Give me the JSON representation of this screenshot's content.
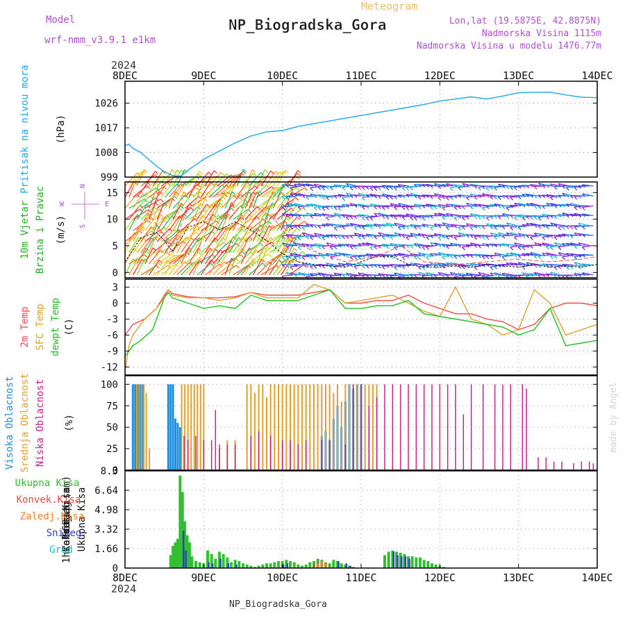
{
  "header": {
    "model_label": "Model",
    "model_name": "wrf-nmm_v3.9.1 e1km",
    "meteogram_label": "Meteogram",
    "station": "NP_Biogradska_Gora",
    "lonlat": "Lon,lat (19.5875E, 42.8875N)",
    "elevation": "Nadmorska Visina 1115m",
    "model_elevation": "Nadmorska Visina u modelu 1476.77m",
    "year": "2024",
    "footer_station": "NP_Biogradska_Gora",
    "credit": "made by Angel"
  },
  "colors": {
    "pressure": "#1ea6e6",
    "temp2m": "#f04a4a",
    "sfctemp": "#e0a030",
    "dewpt": "#20c020",
    "high_cloud": "#1e90e0",
    "mid_cloud": "#e0a030",
    "low_cloud": "#c8208c",
    "total_precip": "#30c030",
    "snow": "#3040c8",
    "graupel": "#20c0c0",
    "header_purple": "#b050d0",
    "header_gold": "#e8c070"
  },
  "chart_data": [
    {
      "type": "line",
      "panel": "pressure",
      "ylabel": [
        "Pritisak na nivou mora",
        "(hPa)"
      ],
      "x_ticks": [
        "8DEC",
        "9DEC",
        "10DEC",
        "11DEC",
        "12DEC",
        "13DEC",
        "14DEC"
      ],
      "y_ticks": [
        999,
        1008,
        1017,
        1026
      ],
      "ylim": [
        999,
        1034
      ],
      "xlim_days": [
        0,
        6
      ],
      "grid": true,
      "series": [
        {
          "x": [
            0,
            0.05,
            0.1,
            0.2,
            0.3,
            0.4,
            0.5,
            0.6,
            0.7,
            0.75,
            0.8,
            0.9,
            1.0,
            1.2,
            1.4,
            1.6,
            1.8,
            2.0,
            2.2,
            2.4,
            2.6,
            2.8,
            3.0,
            3.2,
            3.4,
            3.6,
            3.8,
            4.0,
            4.2,
            4.4,
            4.6,
            4.8,
            5.0,
            5.2,
            5.4,
            5.6,
            5.8,
            6.0
          ],
          "y": [
            1010.5,
            1011,
            1009.5,
            1008,
            1005.5,
            1003,
            1001,
            999.6,
            999.3,
            1000.3,
            1001.5,
            1003.5,
            1005.5,
            1008.5,
            1011.5,
            1014,
            1015.5,
            1016,
            1017.5,
            1018.5,
            1019.5,
            1020.5,
            1021.5,
            1022.5,
            1023.5,
            1024.5,
            1025.5,
            1026.8,
            1027.5,
            1028.3,
            1027.5,
            1028.6,
            1029.8,
            1030,
            1030,
            1029,
            1028.2,
            1028
          ]
        }
      ]
    },
    {
      "type": "line",
      "panel": "wind",
      "ylabel": [
        "10m Vjetar",
        "Brzina i Pravac",
        "(m/s)"
      ],
      "direction_key": [
        "N",
        "W",
        "E",
        "S"
      ],
      "y_ticks": [
        0,
        5,
        10,
        15
      ],
      "ylim": [
        -1,
        17
      ],
      "grid": true,
      "series": [
        {
          "name": "speed",
          "x": [
            0,
            0.2,
            0.4,
            0.5,
            0.6,
            0.7,
            0.8,
            1.0,
            1.2,
            1.4,
            1.6,
            1.8,
            2.0,
            2.2,
            2.4,
            2.6,
            2.8,
            3.0,
            3.2,
            3.4,
            3.6,
            3.8,
            4.0,
            4.2,
            4.4,
            4.6,
            4.8,
            5.0,
            5.2,
            5.4,
            5.6,
            5.8,
            6.0
          ],
          "y": [
            2,
            6.5,
            7.5,
            6,
            4,
            6,
            8.5,
            9.5,
            8,
            9.5,
            8,
            6,
            3.5,
            2,
            1.5,
            1.2,
            1,
            2,
            3,
            3,
            1.5,
            1,
            1,
            1.2,
            1,
            1.5,
            1.2,
            1,
            1.5,
            1,
            1.2,
            1,
            1.5
          ]
        },
        {
          "name": "gust",
          "x": [
            0,
            0.3,
            0.6,
            0.8,
            1.0,
            1.3,
            1.6,
            1.9,
            2.1,
            2.4,
            2.8,
            3.2,
            3.5,
            3.8,
            4.2,
            4.6,
            5.0,
            5.4,
            5.8,
            6.0
          ],
          "y": [
            5,
            11,
            5,
            12,
            14,
            15,
            13,
            10,
            6,
            4,
            2,
            3,
            5,
            2,
            1.5,
            2,
            2.5,
            2,
            2.5,
            3
          ]
        }
      ]
    },
    {
      "type": "line",
      "panel": "temperature",
      "ylabel": [
        "2m Temp",
        "SFC Temp",
        "dewpt Temp",
        "(C)"
      ],
      "y_ticks": [
        3,
        0,
        -3,
        -6,
        -9,
        -12
      ],
      "ylim": [
        -13.5,
        4.5
      ],
      "grid": true,
      "series": [
        {
          "name": "2m Temp",
          "x": [
            0,
            0.1,
            0.25,
            0.4,
            0.5,
            0.55,
            0.6,
            0.8,
            1.0,
            1.2,
            1.4,
            1.6,
            1.8,
            2.0,
            2.2,
            2.4,
            2.6,
            2.8,
            3.0,
            3.2,
            3.4,
            3.6,
            3.8,
            4.0,
            4.2,
            4.4,
            4.6,
            4.8,
            5.0,
            5.2,
            5.4,
            5.6,
            5.8,
            6.0
          ],
          "y": [
            -6,
            -4,
            -3,
            -1,
            1.5,
            2.5,
            1.8,
            1.2,
            1,
            1,
            1.2,
            2,
            1.5,
            1.5,
            1.5,
            2,
            2.5,
            0,
            0,
            0.5,
            0.5,
            1.5,
            0,
            -1,
            -2,
            -2,
            -3,
            -3.5,
            -5,
            -4,
            -1,
            0,
            0,
            -0.5
          ]
        },
        {
          "name": "SFC Temp",
          "x": [
            0,
            0.05,
            0.1,
            0.25,
            0.4,
            0.5,
            0.55,
            0.6,
            0.8,
            1.0,
            1.2,
            1.4,
            1.6,
            1.8,
            2.0,
            2.2,
            2.4,
            2.6,
            2.8,
            3.0,
            3.2,
            3.4,
            3.6,
            3.8,
            4.0,
            4.2,
            4.4,
            4.6,
            4.8,
            5.0,
            5.2,
            5.4,
            5.6,
            5.8,
            6.0
          ],
          "y": [
            -12.8,
            -8,
            -6,
            -3,
            -1,
            1,
            2.5,
            1.5,
            1,
            1,
            0.5,
            1,
            2,
            1,
            1,
            1,
            3.5,
            2.5,
            0,
            0.5,
            1,
            1.5,
            0,
            -1.5,
            -2.5,
            3,
            -3,
            -4,
            -6,
            -5,
            2.5,
            0,
            -6,
            -5,
            -4
          ]
        },
        {
          "name": "dewpt Temp",
          "x": [
            0,
            0.1,
            0.2,
            0.35,
            0.5,
            0.55,
            0.6,
            0.8,
            1.0,
            1.2,
            1.4,
            1.6,
            1.8,
            2.0,
            2.2,
            2.4,
            2.6,
            2.8,
            3.0,
            3.2,
            3.4,
            3.6,
            3.8,
            4.0,
            4.2,
            4.4,
            4.6,
            4.8,
            5.0,
            5.2,
            5.4,
            5.6,
            5.8,
            6.0
          ],
          "y": [
            -10,
            -8,
            -7,
            -5,
            1,
            2,
            1,
            0,
            -1,
            -0.5,
            -1,
            1.5,
            0.5,
            0.5,
            0.5,
            1.5,
            2.5,
            -1,
            -1,
            -0.5,
            -0.5,
            0.5,
            -2,
            -2.5,
            -3,
            -3.5,
            -4,
            -4.5,
            -6,
            -5,
            -1,
            -8,
            -7.5,
            -7
          ]
        }
      ]
    },
    {
      "type": "bar",
      "panel": "clouds",
      "ylabel": [
        "Visoka Oblacnost",
        "Srednja Oblacnost",
        "Niska Oblacnost",
        "(%)"
      ],
      "y_ticks": [
        0,
        25,
        50,
        75,
        100
      ],
      "ylim": [
        0,
        110
      ],
      "grid": true,
      "series": [
        {
          "name": "Visoka Oblacnost",
          "x": [
            0.1,
            0.13,
            0.16,
            0.19,
            0.22,
            0.55,
            0.58,
            0.61,
            0.64,
            0.67,
            0.7,
            2.5,
            2.55,
            2.6,
            2.65,
            2.7,
            2.75,
            2.8,
            2.85,
            2.9,
            2.95,
            3.0
          ],
          "values": [
            100,
            100,
            100,
            100,
            100,
            100,
            100,
            100,
            60,
            55,
            50,
            40,
            45,
            35,
            60,
            75,
            50,
            80,
            100,
            95,
            100,
            100
          ]
        },
        {
          "name": "Srednja Oblacnost",
          "x": [
            0.15,
            0.18,
            0.21,
            0.24,
            0.27,
            0.31,
            0.72,
            0.76,
            0.8,
            0.84,
            0.88,
            0.92,
            0.96,
            1.0,
            1.2,
            1.3,
            1.4,
            1.55,
            1.6,
            1.65,
            1.7,
            1.75,
            1.8,
            1.85,
            1.9,
            1.95,
            2.0,
            2.05,
            2.1,
            2.15,
            2.2,
            2.25,
            2.3,
            2.35,
            2.4,
            2.45,
            2.5,
            2.55,
            2.6,
            2.65,
            2.7,
            2.75,
            2.8,
            2.85,
            2.9,
            2.95,
            3.0,
            3.05,
            3.1,
            3.15,
            3.2
          ],
          "values": [
            100,
            100,
            100,
            100,
            90,
            25,
            100,
            100,
            100,
            100,
            100,
            100,
            100,
            100,
            25,
            35,
            35,
            100,
            100,
            90,
            100,
            100,
            85,
            100,
            100,
            100,
            100,
            100,
            100,
            100,
            100,
            100,
            100,
            100,
            100,
            100,
            100,
            100,
            100,
            90,
            100,
            80,
            100,
            100,
            100,
            100,
            100,
            100,
            100,
            100,
            100
          ]
        },
        {
          "name": "Niska Oblacnost",
          "x": [
            0.75,
            0.8,
            0.9,
            1.0,
            1.1,
            1.15,
            1.2,
            1.3,
            1.4,
            1.6,
            1.7,
            1.85,
            2.0,
            2.1,
            2.2,
            2.3,
            2.5,
            2.6,
            2.8,
            2.9,
            3.0,
            3.1,
            3.2,
            3.3,
            3.4,
            3.5,
            3.6,
            3.7,
            3.8,
            3.9,
            4.0,
            4.1,
            4.2,
            4.3,
            4.4,
            4.55,
            4.7,
            4.8,
            4.9,
            5.05,
            5.1,
            5.25,
            5.35,
            5.45,
            5.55,
            5.7,
            5.8,
            5.9,
            5.95
          ],
          "values": [
            40,
            35,
            40,
            35,
            35,
            70,
            30,
            30,
            30,
            40,
            45,
            40,
            35,
            35,
            30,
            35,
            35,
            35,
            30,
            100,
            100,
            75,
            85,
            100,
            100,
            100,
            100,
            100,
            100,
            100,
            100,
            100,
            100,
            65,
            100,
            100,
            100,
            100,
            100,
            100,
            95,
            15,
            15,
            10,
            10,
            8,
            10,
            10,
            8
          ]
        }
      ]
    },
    {
      "type": "bar",
      "panel": "precipitation",
      "ylabel": [
        "Ukupna Kisa",
        "Konvek.Kisa",
        "Zaledj.Kisa",
        "Snijeg",
        "Grad",
        "1hr Precip (mm)"
      ],
      "legend": [
        "Ukupna Kisa",
        "Konvek.Kisa",
        "Zaledj.Kisa",
        "Snijeg",
        "Grad"
      ],
      "y_ticks": [
        0,
        1.66,
        3.32,
        4.98,
        6.64,
        8.3
      ],
      "ylim": [
        0,
        8.3
      ],
      "grid": true,
      "series": [
        {
          "name": "Ukupna Kisa",
          "x": [
            0.58,
            0.61,
            0.64,
            0.67,
            0.7,
            0.73,
            0.76,
            0.79,
            0.82,
            0.85,
            0.9,
            0.95,
            1.0,
            1.05,
            1.1,
            1.15,
            1.2,
            1.25,
            1.3,
            1.35,
            1.4,
            1.45,
            1.5,
            1.55,
            1.6,
            1.65,
            1.7,
            1.75,
            1.8,
            1.85,
            1.9,
            1.95,
            2.0,
            2.05,
            2.1,
            2.15,
            2.2,
            2.25,
            2.3,
            2.35,
            2.4,
            2.45,
            2.5,
            2.55,
            2.6,
            2.65,
            2.7,
            2.75,
            2.8,
            2.85,
            2.9,
            3.3,
            3.35,
            3.4,
            3.45,
            3.5,
            3.55,
            3.6,
            3.65,
            3.7,
            3.75,
            3.8,
            3.85,
            3.9,
            3.95,
            4.0,
            4.05
          ],
          "values": [
            1.1,
            1.9,
            2.2,
            2.5,
            7.9,
            6.5,
            4.0,
            2.8,
            2.2,
            1.0,
            0.6,
            0.5,
            0.4,
            1.5,
            1.2,
            0.8,
            1.4,
            1.2,
            0.9,
            0.5,
            0.7,
            0.6,
            0.4,
            0.3,
            0.2,
            0.1,
            0.2,
            0.3,
            0.4,
            0.4,
            0.5,
            0.6,
            0.6,
            0.7,
            0.6,
            0.5,
            0.3,
            0.2,
            0.3,
            0.5,
            0.6,
            0.8,
            0.7,
            0.5,
            0.4,
            0.7,
            0.6,
            0.4,
            0.3,
            0.2,
            0.1,
            1.1,
            1.4,
            1.5,
            1.4,
            1.3,
            1.2,
            1.0,
            1.0,
            0.9,
            0.9,
            0.7,
            0.6,
            0.4,
            0.3,
            0.2,
            0.1
          ]
        },
        {
          "name": "Konvek.Kisa",
          "x": [
            2.4,
            2.45
          ],
          "values": [
            0.3,
            0.5
          ]
        },
        {
          "name": "Zaledj.Kisa",
          "x": [
            2.45,
            2.5,
            2.55
          ],
          "values": [
            0.4,
            0.6,
            0.5
          ]
        },
        {
          "name": "Snijeg",
          "x": [
            0.73,
            0.76,
            1.05,
            1.1,
            1.2,
            1.3,
            1.4,
            2.0,
            2.05,
            2.7,
            2.8,
            2.85,
            3.4,
            3.45,
            3.5,
            3.55,
            3.6
          ],
          "values": [
            3.2,
            1.5,
            0.5,
            0.4,
            0.8,
            0.4,
            0.3,
            0.3,
            0.4,
            0.6,
            0.4,
            0.2,
            1.4,
            1.1,
            1.0,
            1.0,
            0.8
          ]
        },
        {
          "name": "Grad",
          "x": [
            0.7,
            1.35
          ],
          "values": [
            0.3,
            0.2
          ]
        }
      ]
    }
  ]
}
